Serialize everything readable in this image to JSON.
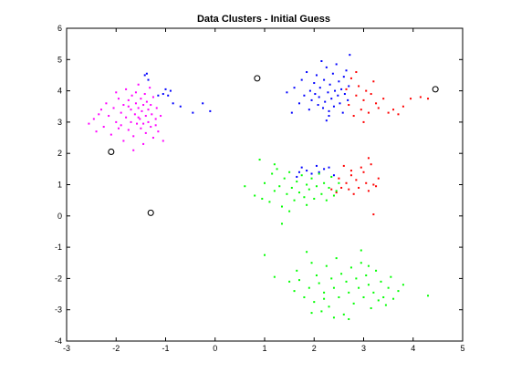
{
  "chart_data": {
    "type": "scatter",
    "title": "Data Clusters - Initial Guess",
    "xlabel": "",
    "ylabel": "",
    "xlim": [
      -3,
      5
    ],
    "ylim": [
      -4,
      6
    ],
    "x_ticks": [
      "-3",
      "-2",
      "-1",
      "0",
      "1",
      "2",
      "3",
      "4",
      "5"
    ],
    "y_ticks": [
      "-4",
      "-3",
      "-2",
      "-1",
      "0",
      "1",
      "2",
      "3",
      "4",
      "5",
      "6"
    ],
    "grid": false,
    "legend": "none",
    "series": [
      {
        "color": "#ff00ff",
        "marker": "dot",
        "points": [
          [
            -2.55,
            2.95
          ],
          [
            -2.45,
            3.1
          ],
          [
            -2.4,
            2.7
          ],
          [
            -2.35,
            3.25
          ],
          [
            -2.3,
            3.4
          ],
          [
            -2.25,
            2.85
          ],
          [
            -2.2,
            3.6
          ],
          [
            -2.15,
            3.2
          ],
          [
            -2.1,
            2.6
          ],
          [
            -2.05,
            3.45
          ],
          [
            -2.0,
            3.0
          ],
          [
            -1.95,
            3.75
          ],
          [
            -1.9,
            3.3
          ],
          [
            -1.9,
            2.9
          ],
          [
            -1.85,
            3.55
          ],
          [
            -1.85,
            2.4
          ],
          [
            -1.8,
            3.15
          ],
          [
            -1.8,
            4.05
          ],
          [
            -1.75,
            3.7
          ],
          [
            -1.75,
            2.75
          ],
          [
            -1.7,
            3.4
          ],
          [
            -1.7,
            3.0
          ],
          [
            -1.68,
            3.85
          ],
          [
            -1.65,
            2.55
          ],
          [
            -1.62,
            3.25
          ],
          [
            -1.6,
            3.6
          ],
          [
            -1.6,
            3.95
          ],
          [
            -1.58,
            2.95
          ],
          [
            -1.55,
            3.45
          ],
          [
            -1.55,
            4.2
          ],
          [
            -1.52,
            3.1
          ],
          [
            -1.5,
            3.75
          ],
          [
            -1.5,
            2.8
          ],
          [
            -1.48,
            3.35
          ],
          [
            -1.45,
            3.55
          ],
          [
            -1.45,
            2.3
          ],
          [
            -1.42,
            3.9
          ],
          [
            -1.4,
            3.2
          ],
          [
            -1.4,
            2.65
          ],
          [
            -1.38,
            3.65
          ],
          [
            -1.35,
            3.0
          ],
          [
            -1.35,
            3.4
          ],
          [
            -1.32,
            4.1
          ],
          [
            -1.3,
            2.85
          ],
          [
            -1.3,
            3.55
          ],
          [
            -1.28,
            3.25
          ],
          [
            -1.25,
            2.5
          ],
          [
            -1.25,
            3.8
          ],
          [
            -1.2,
            3.1
          ],
          [
            -1.2,
            2.9
          ],
          [
            -1.18,
            3.45
          ],
          [
            -1.15,
            2.7
          ],
          [
            -1.1,
            3.2
          ],
          [
            -1.05,
            2.4
          ],
          [
            -1.65,
            2.1
          ],
          [
            -2.0,
            3.95
          ],
          [
            -1.75,
            3.5
          ],
          [
            -1.95,
            2.8
          ],
          [
            -1.55,
            3.15
          ],
          [
            -1.45,
            2.95
          ]
        ]
      },
      {
        "color": "#0000ff",
        "marker": "dot",
        "points": [
          [
            -1.42,
            4.5
          ],
          [
            -1.38,
            4.55
          ],
          [
            -1.35,
            4.35
          ],
          [
            -1.15,
            3.85
          ],
          [
            -1.05,
            3.9
          ],
          [
            -1.0,
            4.05
          ],
          [
            -0.95,
            3.85
          ],
          [
            -0.9,
            4.0
          ],
          [
            -0.85,
            3.6
          ],
          [
            -0.7,
            3.5
          ],
          [
            -0.45,
            3.3
          ],
          [
            -0.25,
            3.6
          ],
          [
            -0.1,
            3.35
          ],
          [
            1.45,
            3.95
          ],
          [
            1.55,
            3.3
          ],
          [
            1.6,
            4.1
          ],
          [
            1.7,
            3.6
          ],
          [
            1.75,
            4.35
          ],
          [
            1.8,
            3.85
          ],
          [
            1.85,
            4.6
          ],
          [
            1.9,
            3.4
          ],
          [
            1.92,
            4.0
          ],
          [
            1.95,
            3.7
          ],
          [
            2.0,
            4.25
          ],
          [
            2.02,
            3.9
          ],
          [
            2.05,
            4.5
          ],
          [
            2.08,
            3.55
          ],
          [
            2.1,
            3.8
          ],
          [
            2.12,
            4.1
          ],
          [
            2.15,
            4.95
          ],
          [
            2.18,
            3.45
          ],
          [
            2.2,
            4.35
          ],
          [
            2.22,
            3.65
          ],
          [
            2.25,
            4.75
          ],
          [
            2.28,
            3.95
          ],
          [
            2.3,
            3.2
          ],
          [
            2.32,
            4.2
          ],
          [
            2.35,
            3.75
          ],
          [
            2.38,
            4.55
          ],
          [
            2.4,
            3.5
          ],
          [
            2.42,
            4.0
          ],
          [
            2.45,
            4.85
          ],
          [
            2.48,
            3.85
          ],
          [
            2.5,
            4.3
          ],
          [
            2.52,
            3.6
          ],
          [
            2.55,
            4.05
          ],
          [
            2.58,
            3.3
          ],
          [
            2.6,
            4.45
          ],
          [
            2.62,
            3.9
          ],
          [
            2.65,
            4.65
          ],
          [
            2.68,
            3.7
          ],
          [
            2.7,
            4.15
          ],
          [
            2.72,
            5.15
          ],
          [
            2.3,
            3.35
          ],
          [
            2.25,
            3.05
          ],
          [
            1.7,
            1.4
          ],
          [
            1.75,
            1.55
          ],
          [
            1.85,
            1.45
          ],
          [
            1.95,
            1.35
          ],
          [
            2.05,
            1.6
          ],
          [
            2.1,
            1.4
          ],
          [
            2.2,
            1.5
          ],
          [
            2.3,
            1.55
          ],
          [
            2.4,
            1.3
          ],
          [
            1.65,
            1.25
          ]
        ]
      },
      {
        "color": "#ff0000",
        "marker": "dot",
        "points": [
          [
            2.65,
            4.05
          ],
          [
            2.7,
            3.55
          ],
          [
            2.75,
            4.4
          ],
          [
            2.8,
            3.2
          ],
          [
            2.85,
            3.85
          ],
          [
            2.9,
            4.15
          ],
          [
            2.95,
            3.4
          ],
          [
            3.0,
            3.7
          ],
          [
            3.05,
            4.0
          ],
          [
            3.1,
            3.3
          ],
          [
            3.15,
            3.9
          ],
          [
            3.2,
            4.3
          ],
          [
            3.25,
            3.6
          ],
          [
            3.3,
            3.45
          ],
          [
            3.4,
            3.75
          ],
          [
            3.5,
            3.3
          ],
          [
            3.6,
            3.4
          ],
          [
            3.7,
            3.25
          ],
          [
            3.8,
            3.5
          ],
          [
            3.95,
            3.75
          ],
          [
            4.15,
            3.8
          ],
          [
            4.3,
            3.75
          ],
          [
            2.85,
            4.6
          ],
          [
            3.0,
            3.0
          ],
          [
            2.6,
            1.6
          ],
          [
            2.65,
            1.05
          ],
          [
            2.7,
            0.85
          ],
          [
            2.75,
            1.3
          ],
          [
            2.8,
            0.7
          ],
          [
            2.85,
            1.15
          ],
          [
            2.9,
            0.9
          ],
          [
            2.95,
            1.55
          ],
          [
            3.0,
            1.4
          ],
          [
            3.05,
            1.05
          ],
          [
            3.1,
            0.8
          ],
          [
            3.15,
            1.65
          ],
          [
            3.2,
            1.0
          ],
          [
            3.25,
            0.95
          ],
          [
            3.3,
            1.2
          ],
          [
            2.55,
            0.9
          ],
          [
            2.5,
            1.2
          ],
          [
            2.45,
            0.75
          ],
          [
            2.35,
            0.85
          ],
          [
            3.2,
            0.05
          ],
          [
            3.1,
            1.85
          ],
          [
            2.75,
            1.45
          ]
        ]
      },
      {
        "color": "#00ff00",
        "marker": "dot",
        "points": [
          [
            0.6,
            0.95
          ],
          [
            0.8,
            0.65
          ],
          [
            0.95,
            0.55
          ],
          [
            1.0,
            1.05
          ],
          [
            1.1,
            0.45
          ],
          [
            1.15,
            1.35
          ],
          [
            1.2,
            0.8
          ],
          [
            1.25,
            1.5
          ],
          [
            1.3,
            0.95
          ],
          [
            1.35,
            0.3
          ],
          [
            1.4,
            1.2
          ],
          [
            1.45,
            0.7
          ],
          [
            1.5,
            1.4
          ],
          [
            1.55,
            0.9
          ],
          [
            1.6,
            0.5
          ],
          [
            1.65,
            1.1
          ],
          [
            1.7,
            0.75
          ],
          [
            1.75,
            1.3
          ],
          [
            1.8,
            0.6
          ],
          [
            1.85,
            1.0
          ],
          [
            1.9,
            0.85
          ],
          [
            1.95,
            1.2
          ],
          [
            2.0,
            0.55
          ],
          [
            2.05,
            0.95
          ],
          [
            2.1,
            1.35
          ],
          [
            2.15,
            0.7
          ],
          [
            2.2,
            1.05
          ],
          [
            2.25,
            0.5
          ],
          [
            2.3,
            0.9
          ],
          [
            2.35,
            1.25
          ],
          [
            2.4,
            0.65
          ],
          [
            2.45,
            0.8
          ],
          [
            2.5,
            1.05
          ],
          [
            1.35,
            -0.25
          ],
          [
            1.5,
            0.15
          ],
          [
            1.85,
            0.35
          ],
          [
            0.9,
            1.8
          ],
          [
            1.2,
            1.65
          ],
          [
            1.0,
            -1.25
          ],
          [
            1.2,
            -1.95
          ],
          [
            1.5,
            -2.1
          ],
          [
            1.6,
            -2.4
          ],
          [
            1.65,
            -1.75
          ],
          [
            1.7,
            -2.05
          ],
          [
            1.8,
            -2.6
          ],
          [
            1.85,
            -1.15
          ],
          [
            1.9,
            -2.3
          ],
          [
            1.95,
            -1.5
          ],
          [
            2.0,
            -2.75
          ],
          [
            2.05,
            -1.9
          ],
          [
            2.1,
            -2.15
          ],
          [
            2.15,
            -3.05
          ],
          [
            2.2,
            -2.45
          ],
          [
            2.25,
            -1.6
          ],
          [
            2.3,
            -2.9
          ],
          [
            2.35,
            -2.0
          ],
          [
            2.4,
            -2.3
          ],
          [
            2.45,
            -1.35
          ],
          [
            2.5,
            -2.6
          ],
          [
            2.55,
            -1.85
          ],
          [
            2.6,
            -3.15
          ],
          [
            2.65,
            -2.1
          ],
          [
            2.7,
            -2.45
          ],
          [
            2.75,
            -1.65
          ],
          [
            2.8,
            -2.8
          ],
          [
            2.85,
            -2.0
          ],
          [
            2.9,
            -2.3
          ],
          [
            2.95,
            -1.5
          ],
          [
            3.0,
            -2.6
          ],
          [
            3.05,
            -1.9
          ],
          [
            3.1,
            -2.2
          ],
          [
            3.15,
            -2.95
          ],
          [
            3.2,
            -2.45
          ],
          [
            3.25,
            -1.75
          ],
          [
            3.3,
            -2.7
          ],
          [
            3.35,
            -2.1
          ],
          [
            3.4,
            -2.6
          ],
          [
            3.45,
            -2.85
          ],
          [
            3.5,
            -2.3
          ],
          [
            3.55,
            -1.95
          ],
          [
            3.6,
            -2.65
          ],
          [
            3.7,
            -2.4
          ],
          [
            3.8,
            -2.2
          ],
          [
            4.3,
            -2.55
          ],
          [
            2.7,
            -3.3
          ],
          [
            2.95,
            -1.1
          ],
          [
            2.4,
            -3.25
          ],
          [
            3.1,
            -1.6
          ],
          [
            2.2,
            -2.65
          ],
          [
            1.95,
            -3.1
          ]
        ]
      },
      {
        "color": "#000000",
        "marker": "circle",
        "points": [
          [
            -2.1,
            2.05
          ],
          [
            -1.3,
            0.1
          ],
          [
            0.85,
            4.4
          ],
          [
            4.45,
            4.05
          ]
        ]
      }
    ]
  }
}
